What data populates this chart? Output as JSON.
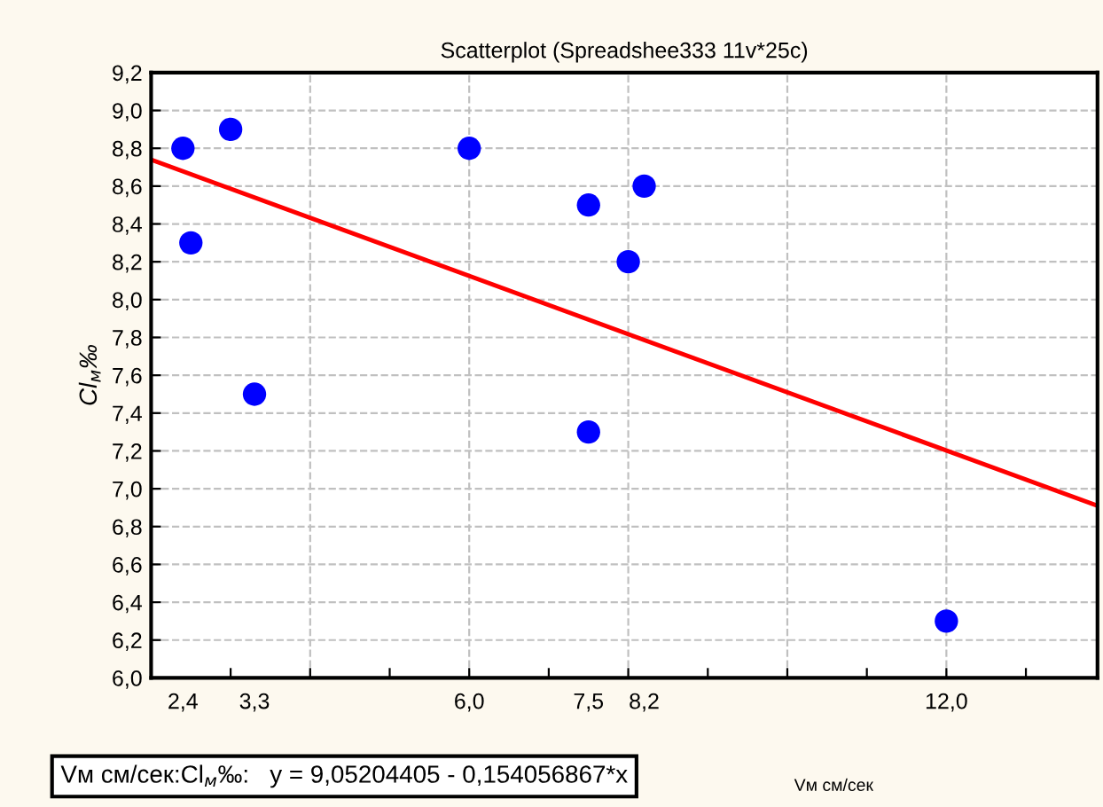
{
  "chart_data": {
    "type": "scatter",
    "title": "Scatterplot (Spreadshee333 11v*25c)",
    "xlabel": "Vм см/сек",
    "ylabel": "Cl$_{м}$‰",
    "annotations": [
      "Vм см/сек:Cl$_{м}$‰:   y = 9,05204405 - 0,154056867*x"
    ],
    "series": [
      {
        "type": "scatter",
        "color": "#0000ff",
        "marker": "circle",
        "x": [
          2.4,
          2.5,
          3.0,
          3.3,
          6.0,
          7.5,
          7.5,
          8.0,
          8.2,
          12.0
        ],
        "values": [
          8.8,
          8.3,
          8.9,
          7.5,
          8.8,
          8.5,
          7.3,
          8.2,
          8.6,
          6.3
        ]
      },
      {
        "type": "line",
        "color": "#ff0000",
        "line_style": "solid",
        "x": [
          2.0,
          13.9
        ],
        "values": [
          8.74,
          6.91
        ]
      }
    ],
    "xlim": [
      2.0,
      13.9
    ],
    "xticks": [
      {
        "value": 3,
        "label": null
      },
      {
        "value": 4,
        "label": null
      },
      {
        "value": 5,
        "label": null
      },
      {
        "value": 6,
        "label": null
      },
      {
        "value": 7,
        "label": null
      },
      {
        "value": 8,
        "label": null
      },
      {
        "value": 9,
        "label": null
      },
      {
        "value": 10,
        "label": null
      },
      {
        "value": 11,
        "label": null
      },
      {
        "value": 12,
        "label": null
      },
      {
        "value": 13,
        "label": null
      },
      {
        "value": 2.4,
        "label": "2,4"
      },
      {
        "value": 3.3,
        "label": "3,3"
      },
      {
        "value": 6.0,
        "label": "6,0"
      },
      {
        "value": 7.5,
        "label": "7,5"
      },
      {
        "value": 8.2,
        "label": "8,2"
      },
      {
        "value": 12.0,
        "label": "12,0"
      }
    ],
    "ylim": [
      6.0,
      9.2
    ],
    "yticks": [
      {
        "value": 6.0,
        "label": "6,0"
      },
      {
        "value": 6.2,
        "label": "6,2"
      },
      {
        "value": 6.4,
        "label": "6,4"
      },
      {
        "value": 6.6,
        "label": "6,6"
      },
      {
        "value": 6.8,
        "label": "6,8"
      },
      {
        "value": 7.0,
        "label": "7,0"
      },
      {
        "value": 7.2,
        "label": "7,2"
      },
      {
        "value": 7.4,
        "label": "7,4"
      },
      {
        "value": 7.6,
        "label": "7,6"
      },
      {
        "value": 7.8,
        "label": "7,8"
      },
      {
        "value": 8.0,
        "label": "8,0"
      },
      {
        "value": 8.2,
        "label": "8,2"
      },
      {
        "value": 8.4,
        "label": "8,4"
      },
      {
        "value": 8.6,
        "label": "8,6"
      },
      {
        "value": 8.8,
        "label": "8,8"
      },
      {
        "value": 9.0,
        "label": "9,0"
      },
      {
        "value": 9.2,
        "label": "9,2"
      }
    ],
    "grid": true,
    "legend": false
  }
}
